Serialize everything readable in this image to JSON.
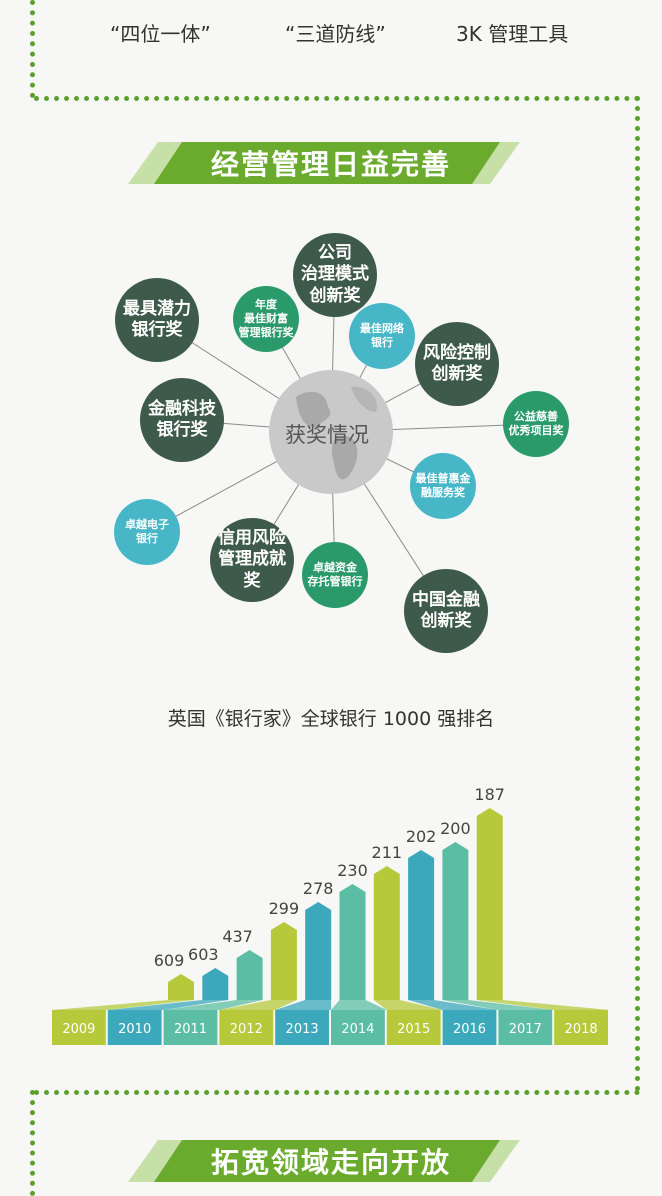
{
  "top_items": [
    "“四位一体”",
    "“三道防线”",
    "3K 管理工具"
  ],
  "section1_title": "经营管理日益完善",
  "globe_label": "获奖情况",
  "awards": [
    {
      "label": "公司\n治理模式\n创新奖",
      "kind": "dark"
    },
    {
      "label": "最具潜力\n银行奖",
      "kind": "dark"
    },
    {
      "label": "年度\n最佳财富\n管理银行奖",
      "kind": "green"
    },
    {
      "label": "最佳网络\n银行",
      "kind": "teal"
    },
    {
      "label": "风险控制\n创新奖",
      "kind": "dark"
    },
    {
      "label": "金融科技\n银行奖",
      "kind": "dark"
    },
    {
      "label": "公益慈善\n优秀项目奖",
      "kind": "green"
    },
    {
      "label": "最佳普惠金\n融服务奖",
      "kind": "teal"
    },
    {
      "label": "卓越电子\n银行",
      "kind": "teal"
    },
    {
      "label": "信用风险\n管理成就奖",
      "kind": "dark"
    },
    {
      "label": "卓越资金\n存托管银行",
      "kind": "green"
    },
    {
      "label": "中国金融\n创新奖",
      "kind": "dark"
    }
  ],
  "chart_data": {
    "type": "bar",
    "title": "英国《银行家》全球银行 1000 强排名",
    "categories": [
      "2009",
      "2010",
      "2011",
      "2012",
      "2013",
      "2014",
      "2015",
      "2016",
      "2017",
      "2018"
    ],
    "values": [
      609,
      603,
      437,
      299,
      278,
      230,
      211,
      202,
      200,
      187
    ],
    "colors": [
      "#b5c93a",
      "#3ba8bb",
      "#5bbda3",
      "#b5c93a",
      "#3ba8bb",
      "#5bbda3",
      "#b5c93a",
      "#3ba8bb",
      "#5bbda3",
      "#b5c93a"
    ],
    "note": "rank values; smaller rank drawn as taller bar"
  },
  "section2_title": "拓宽领域走向开放",
  "colors": {
    "dots": "#5aa02c",
    "banner": "#6aab2e"
  }
}
